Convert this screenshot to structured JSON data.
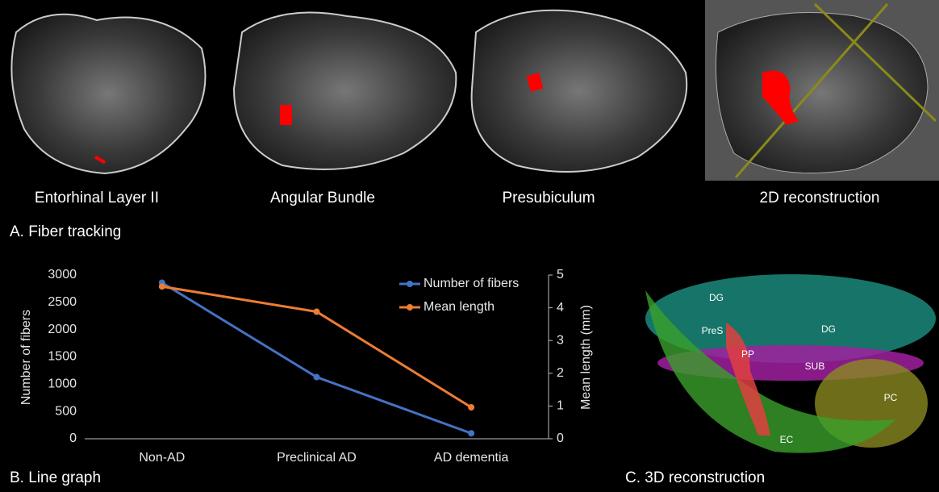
{
  "figure": {
    "captions": [
      "Entorhinal Layer II",
      "Angular Bundle",
      "Presubiculum",
      "2D reconstruction"
    ],
    "panel_a_label": "A. Fiber tracking",
    "panel_b_label": "B. Line graph",
    "panel_c_label": "C. 3D reconstruction",
    "regions": [
      "DG",
      "DG",
      "PreS",
      "PP",
      "SUB",
      "PC",
      "EC"
    ]
  },
  "chart_data": {
    "type": "line",
    "categories": [
      "Non-AD",
      "Preclinical AD",
      "AD dementia"
    ],
    "series": [
      {
        "name": "Number of fibers",
        "color": "#4472c4",
        "values": [
          2860,
          1130,
          100
        ]
      },
      {
        "name": "Mean length",
        "color": "#ed7d31",
        "values": [
          4.65,
          3.88,
          0.96
        ],
        "axis": "y2"
      }
    ],
    "ylabel": "Number of fibers",
    "y2label": "Mean length (mm)",
    "ylim": [
      0,
      3000
    ],
    "yticks": [
      0,
      500,
      1000,
      1500,
      2000,
      2500,
      3000
    ],
    "y2lim": [
      0,
      5
    ],
    "y2ticks": [
      0,
      1,
      2,
      3,
      4,
      5
    ],
    "legend": "upper right",
    "grid": false
  }
}
